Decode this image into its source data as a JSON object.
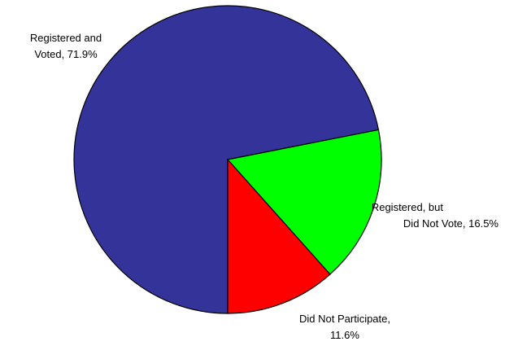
{
  "chart_data": {
    "type": "pie",
    "slices": [
      {
        "label_lines": [
          "Registered and",
          "Voted, 71.9%"
        ],
        "value": 71.9,
        "color": "#333399"
      },
      {
        "label_lines": [
          "Registered, but",
          "Did Not Vote, 16.5%"
        ],
        "value": 16.5,
        "color": "#00ff00"
      },
      {
        "label_lines": [
          "Did Not Participate,",
          "11.6%"
        ],
        "value": 11.6,
        "color": "#ff0000"
      }
    ],
    "legend": "none"
  }
}
